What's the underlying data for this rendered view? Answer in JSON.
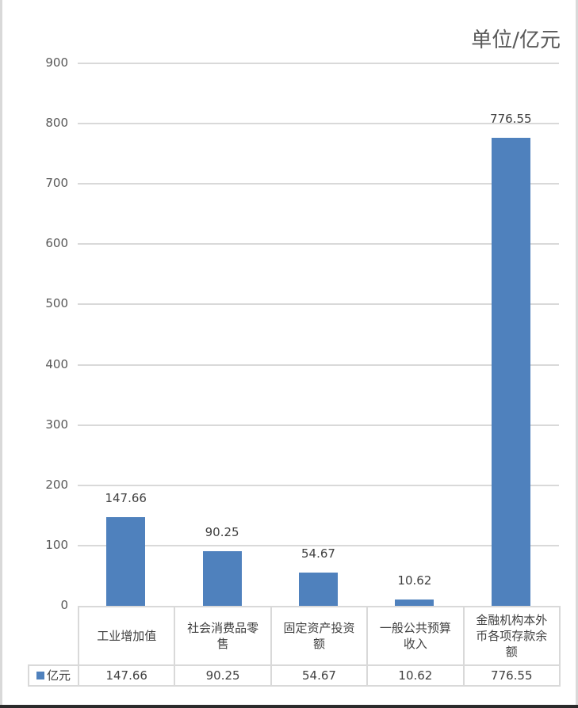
{
  "chart_data": {
    "type": "bar",
    "title": "单位/亿元",
    "xlabel": "",
    "ylabel": "",
    "ylim": [
      0,
      900
    ],
    "yticks": [
      0,
      100,
      200,
      300,
      400,
      500,
      600,
      700,
      800,
      900
    ],
    "grid": true,
    "legend_position": "data-table",
    "categories": [
      "工业增加值",
      "社会消费品零售",
      "固定资产投资额",
      "一般公共预算收入",
      "金融机构本外币各项存款余额"
    ],
    "series": [
      {
        "name": "亿元",
        "color": "#4f81bd",
        "values": [
          147.66,
          90.25,
          54.67,
          10.62,
          776.55
        ]
      }
    ],
    "data_labels": [
      "147.66",
      "90.25",
      "54.67",
      "10.62",
      "776.55"
    ]
  },
  "unit_title": "单位/亿元",
  "yticks": [
    "900",
    "800",
    "700",
    "600",
    "500",
    "400",
    "300",
    "200",
    "100",
    "0"
  ],
  "table": {
    "categories_display": [
      [
        "工业增加值"
      ],
      [
        "社会消费品零",
        "售"
      ],
      [
        "固定资产投资",
        "额"
      ],
      [
        "一般公共预算",
        "收入"
      ],
      [
        "金融机构本外",
        "币各项存款余",
        "额"
      ]
    ],
    "legend_label": "亿元",
    "values": [
      "147.66",
      "90.25",
      "54.67",
      "10.62",
      "776.55"
    ]
  }
}
